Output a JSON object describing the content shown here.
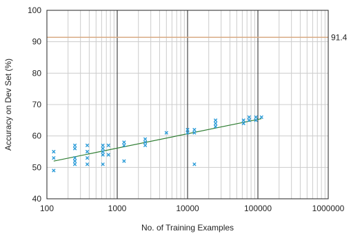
{
  "chart_data": {
    "type": "scatter",
    "xlabel": "No. of Training Examples",
    "ylabel": "Accuracy on Dev Set (%)",
    "x_scale": "log",
    "xlim": [
      100,
      1000000
    ],
    "ylim": [
      40,
      100
    ],
    "x_ticks": [
      {
        "value": 100,
        "label": "100"
      },
      {
        "value": 1000,
        "label": "1000"
      },
      {
        "value": 10000,
        "label": "10000"
      },
      {
        "value": 100000,
        "label": "100000"
      },
      {
        "value": 1000000,
        "label": "1000000"
      }
    ],
    "y_ticks": [
      {
        "value": 40,
        "label": "40"
      },
      {
        "value": 50,
        "label": "50"
      },
      {
        "value": 60,
        "label": "60"
      },
      {
        "value": 70,
        "label": "70"
      },
      {
        "value": 80,
        "label": "80"
      },
      {
        "value": 90,
        "label": "90"
      },
      {
        "value": 100,
        "label": "100"
      }
    ],
    "grid": true,
    "points": [
      {
        "x": 125,
        "y": 55
      },
      {
        "x": 125,
        "y": 53
      },
      {
        "x": 125,
        "y": 49
      },
      {
        "x": 250,
        "y": 57
      },
      {
        "x": 250,
        "y": 56
      },
      {
        "x": 250,
        "y": 53
      },
      {
        "x": 250,
        "y": 52
      },
      {
        "x": 250,
        "y": 51
      },
      {
        "x": 375,
        "y": 57
      },
      {
        "x": 375,
        "y": 55
      },
      {
        "x": 375,
        "y": 53
      },
      {
        "x": 375,
        "y": 51
      },
      {
        "x": 625,
        "y": 57
      },
      {
        "x": 625,
        "y": 56
      },
      {
        "x": 625,
        "y": 55
      },
      {
        "x": 625,
        "y": 54
      },
      {
        "x": 625,
        "y": 51
      },
      {
        "x": 750,
        "y": 57
      },
      {
        "x": 750,
        "y": 54
      },
      {
        "x": 1250,
        "y": 58
      },
      {
        "x": 1250,
        "y": 57
      },
      {
        "x": 1250,
        "y": 52
      },
      {
        "x": 2500,
        "y": 59
      },
      {
        "x": 2500,
        "y": 58
      },
      {
        "x": 2500,
        "y": 57
      },
      {
        "x": 5000,
        "y": 61
      },
      {
        "x": 10000,
        "y": 62
      },
      {
        "x": 10000,
        "y": 61
      },
      {
        "x": 12500,
        "y": 62
      },
      {
        "x": 12500,
        "y": 61
      },
      {
        "x": 12500,
        "y": 51
      },
      {
        "x": 25000,
        "y": 65
      },
      {
        "x": 25000,
        "y": 64
      },
      {
        "x": 25000,
        "y": 63
      },
      {
        "x": 62500,
        "y": 65
      },
      {
        "x": 62500,
        "y": 64
      },
      {
        "x": 75000,
        "y": 66
      },
      {
        "x": 75000,
        "y": 65
      },
      {
        "x": 93750,
        "y": 66
      },
      {
        "x": 93750,
        "y": 65
      },
      {
        "x": 112500,
        "y": 66
      }
    ],
    "trendline": {
      "x": [
        125,
        112500
      ],
      "y": [
        52,
        65.5
      ],
      "color": "#2e7d32"
    },
    "reference_line": {
      "y": 91.4,
      "label": "91.4",
      "color": "#d8ab84"
    },
    "colors": {
      "points": "#2a9bd8",
      "major_grid": "#222222",
      "minor_grid": "#cccccc",
      "axis": "#222222"
    }
  }
}
